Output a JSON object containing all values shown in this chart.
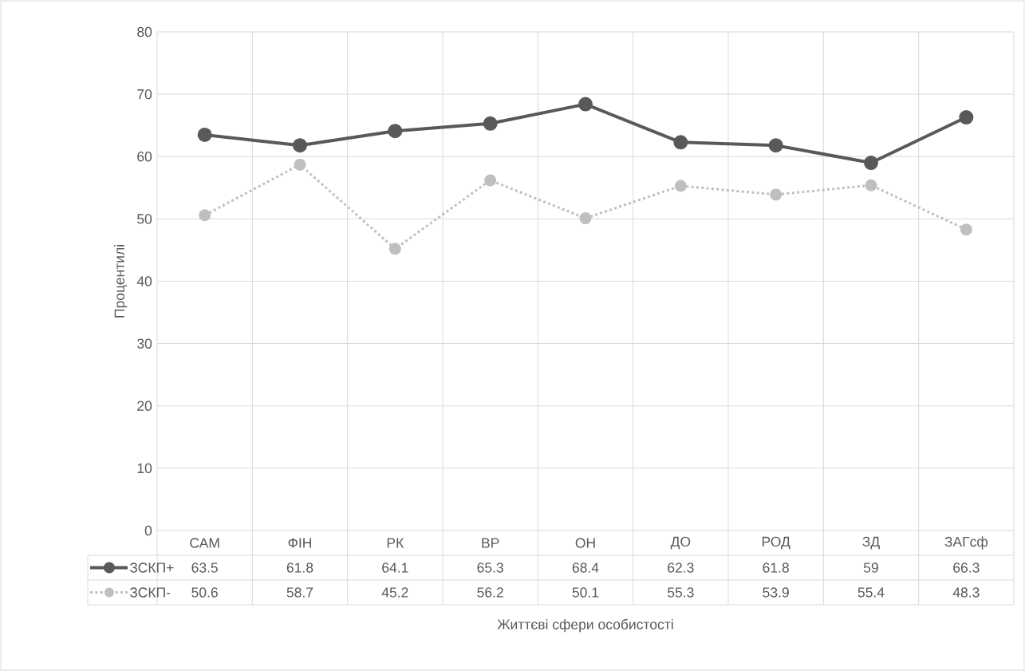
{
  "chart_data": {
    "type": "line",
    "xlabel": "Життєві сфери особистості",
    "ylabel": "Процентилі",
    "categories": [
      "САМ",
      "ФІН",
      "РК",
      "ВР",
      "ОН",
      "ДО",
      "РОД",
      "ЗД",
      "ЗАГсф"
    ],
    "series": [
      {
        "name": "ЗСКП+",
        "color": "#595959",
        "line_style": "solid",
        "values": [
          63.5,
          61.8,
          64.1,
          65.3,
          68.4,
          62.3,
          61.8,
          59,
          66.3
        ]
      },
      {
        "name": "ЗСКП-",
        "color": "#bfbfbf",
        "line_style": "dotted",
        "values": [
          50.6,
          58.7,
          45.2,
          56.2,
          50.1,
          55.3,
          53.9,
          55.4,
          48.3
        ]
      }
    ],
    "ylim": [
      0,
      80
    ],
    "yticks": [
      0,
      10,
      20,
      30,
      40,
      50,
      60,
      70,
      80
    ],
    "grid": true,
    "legend": "bottom",
    "marker": "circle",
    "data_labels": true
  }
}
